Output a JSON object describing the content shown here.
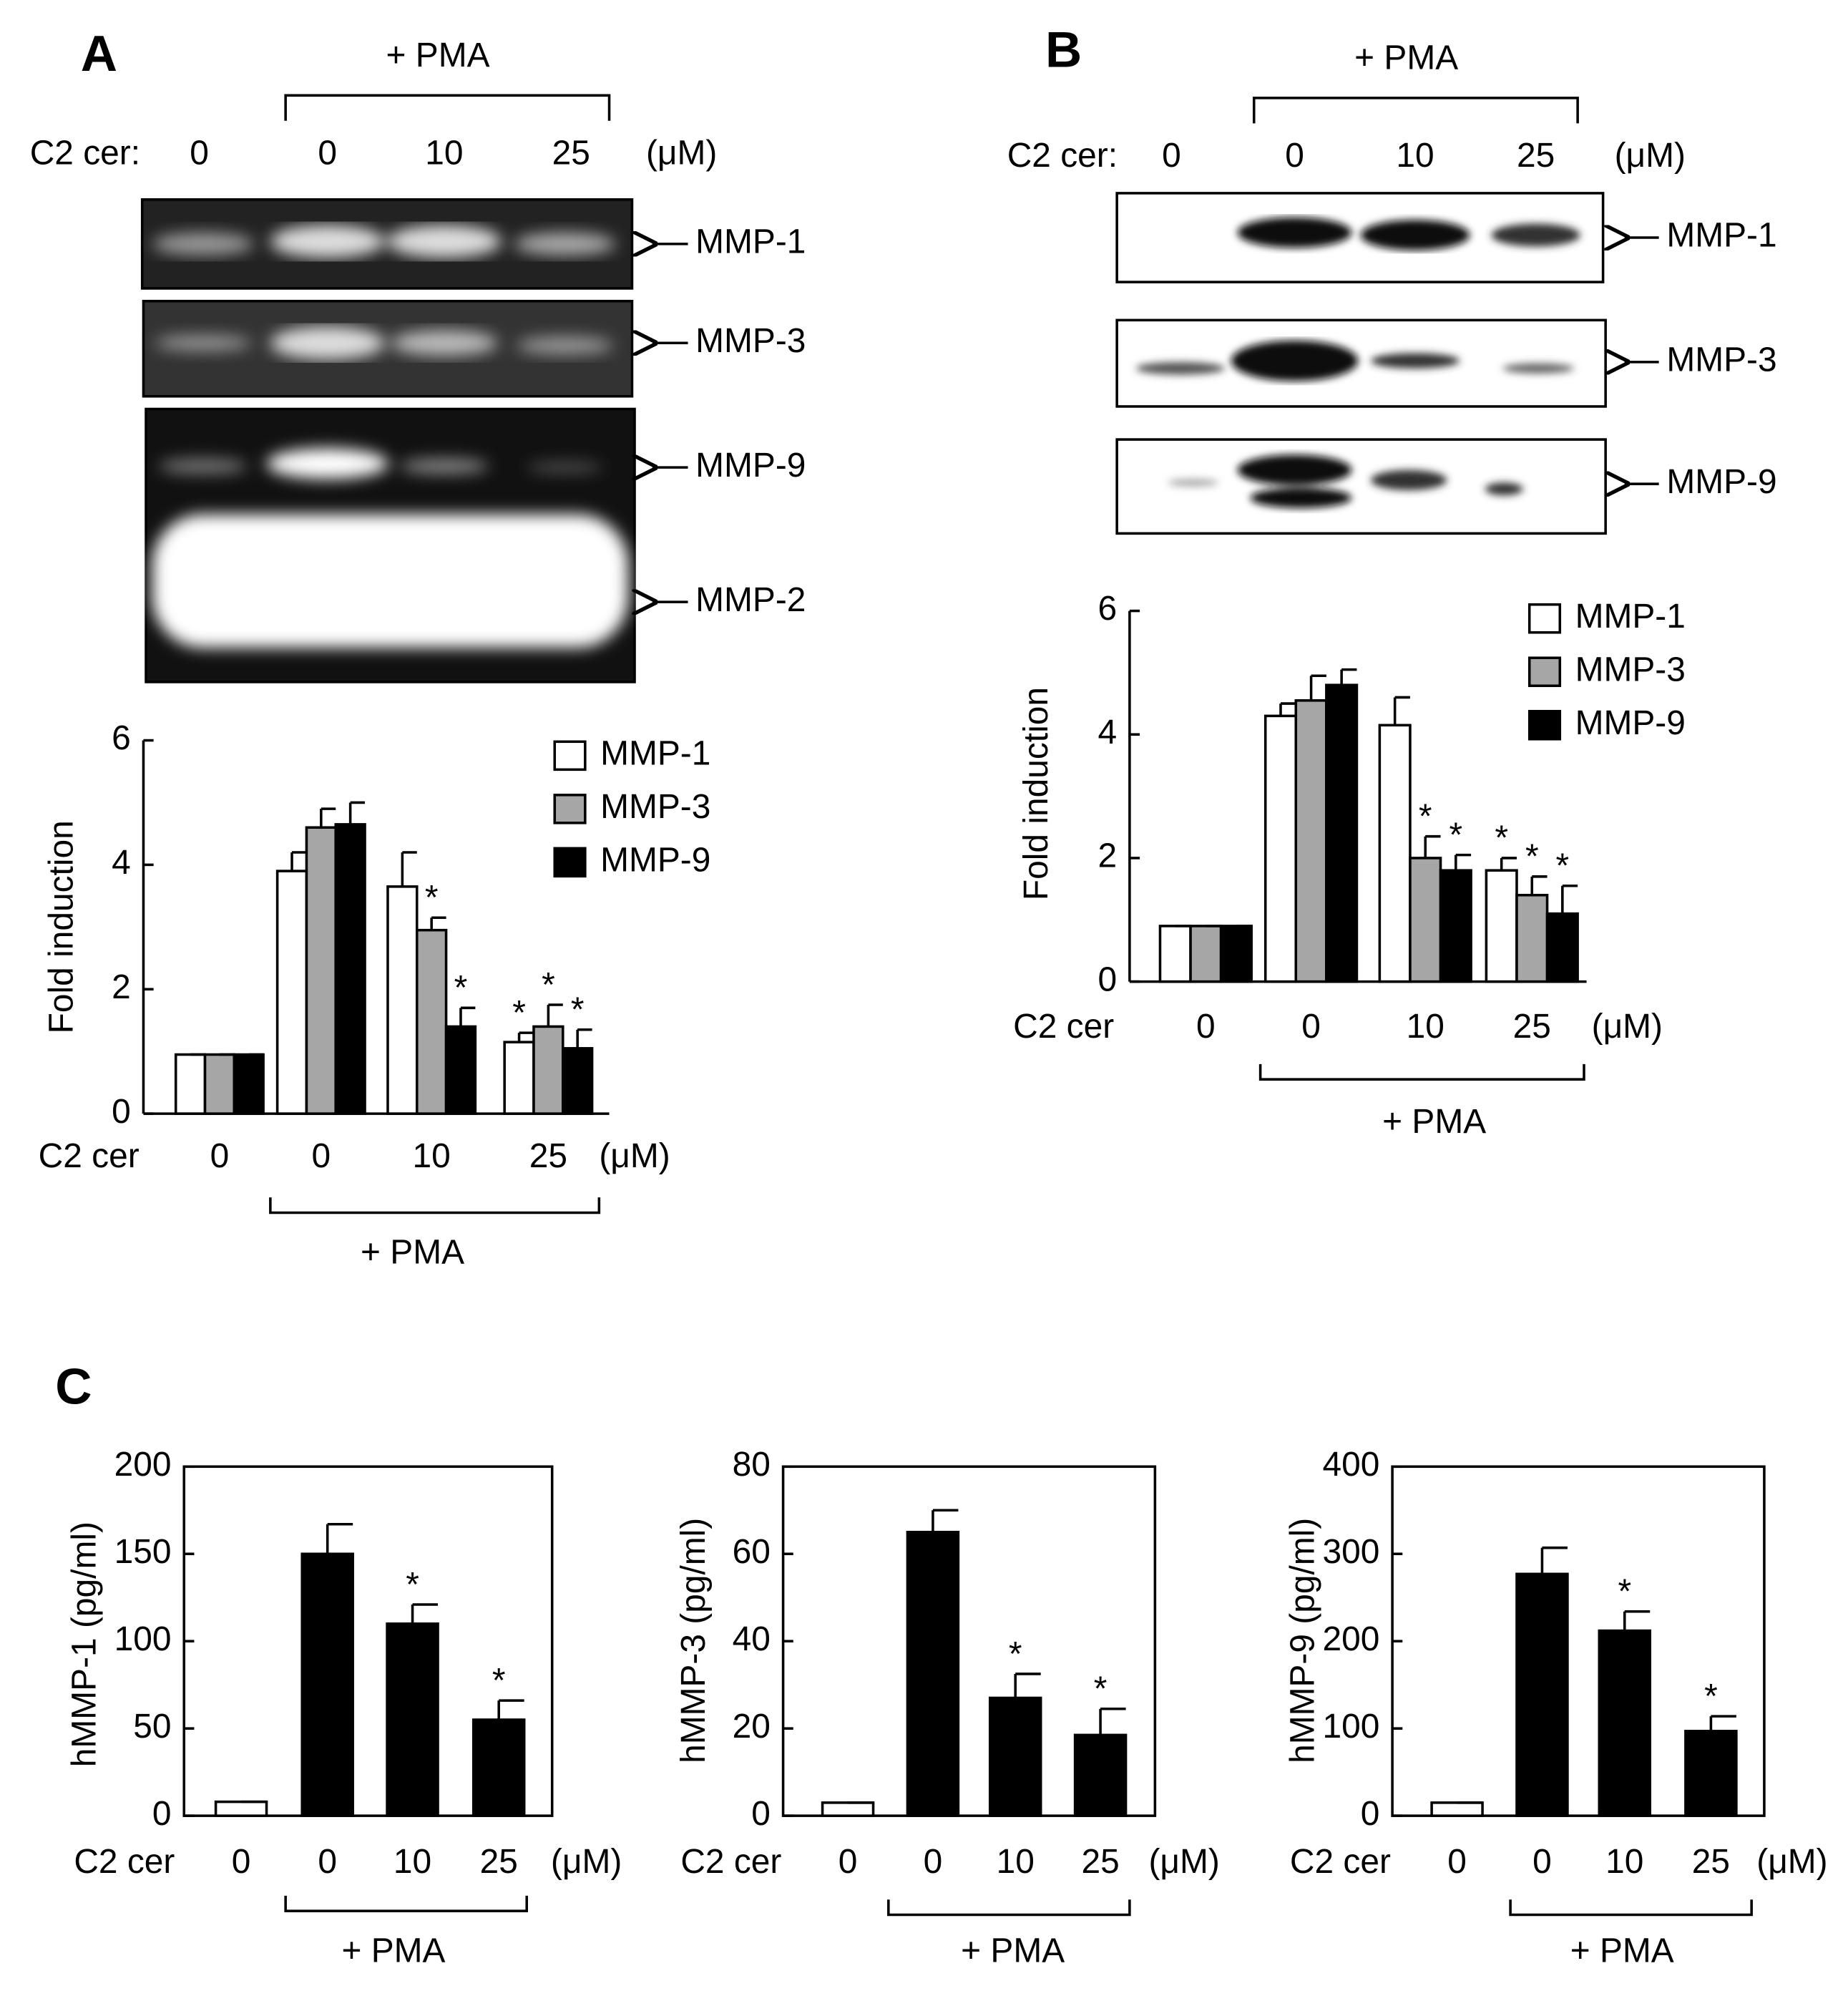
{
  "blots": [
    {
      "letter": "A",
      "treatment": "+ PMA",
      "dose_label": "C2 cer:",
      "doses": [
        "0",
        "0",
        "10",
        "25"
      ],
      "unit": "(μM)",
      "bands": [
        "MMP-1",
        "MMP-3",
        "MMP-9",
        "MMP-2"
      ]
    },
    {
      "letter": "B",
      "treatment": "+ PMA",
      "dose_label": "C2 cer:",
      "doses": [
        "0",
        "0",
        "10",
        "25"
      ],
      "unit": "(μM)",
      "bands": [
        "MMP-1",
        "MMP-3",
        "MMP-9"
      ]
    }
  ],
  "panel_c": "C",
  "chart_data": [
    {
      "type": "bar",
      "ylabel": "Fold induction",
      "xlabel": "C2 cer",
      "unit": "(μM)",
      "bracket": "+ PMA",
      "categories": [
        "0",
        "0",
        "10",
        "25"
      ],
      "ylim": [
        0,
        6
      ],
      "yticks": [
        0,
        2,
        4,
        6
      ],
      "series": [
        {
          "name": "MMP-1",
          "color": "#ffffff",
          "values": [
            0.95,
            3.9,
            3.65,
            1.15
          ],
          "errors": [
            0,
            0.3,
            0.55,
            0.15
          ],
          "significance": [
            null,
            null,
            null,
            "*"
          ]
        },
        {
          "name": "MMP-3",
          "color": "#a6a6a6",
          "values": [
            0.95,
            4.6,
            2.95,
            1.4
          ],
          "errors": [
            0,
            0.3,
            0.2,
            0.35
          ],
          "significance": [
            null,
            null,
            "*",
            "*"
          ]
        },
        {
          "name": "MMP-9",
          "color": "#000000",
          "values": [
            0.95,
            4.65,
            1.4,
            1.05
          ],
          "errors": [
            0,
            0.35,
            0.3,
            0.3
          ],
          "significance": [
            null,
            null,
            "*",
            "*"
          ]
        }
      ]
    },
    {
      "type": "bar",
      "ylabel": "Fold induction",
      "xlabel": "C2 cer",
      "unit": "(μM)",
      "bracket": "+ PMA",
      "categories": [
        "0",
        "0",
        "10",
        "25"
      ],
      "ylim": [
        0,
        6
      ],
      "yticks": [
        0,
        2,
        4,
        6
      ],
      "series": [
        {
          "name": "MMP-1",
          "color": "#ffffff",
          "values": [
            0.9,
            4.3,
            4.15,
            1.8
          ],
          "errors": [
            0,
            0.2,
            0.45,
            0.2
          ],
          "significance": [
            null,
            null,
            null,
            "*"
          ]
        },
        {
          "name": "MMP-3",
          "color": "#a6a6a6",
          "values": [
            0.9,
            4.55,
            2.0,
            1.4
          ],
          "errors": [
            0,
            0.4,
            0.35,
            0.3
          ],
          "significance": [
            null,
            null,
            "*",
            "*"
          ]
        },
        {
          "name": "MMP-9",
          "color": "#000000",
          "values": [
            0.9,
            4.8,
            1.8,
            1.1
          ],
          "errors": [
            0,
            0.25,
            0.25,
            0.45
          ],
          "significance": [
            null,
            null,
            "*",
            "*"
          ]
        }
      ]
    },
    {
      "type": "bar",
      "ylabel": "hMMP-1  (pg/ml)",
      "xlabel": "C2 cer",
      "unit": "(μM)",
      "bracket": "+  PMA",
      "categories": [
        "0",
        "0",
        "10",
        "25"
      ],
      "ylim": [
        0,
        200
      ],
      "yticks": [
        0,
        50,
        100,
        150,
        200
      ],
      "series": [
        {
          "colors": [
            "#ffffff",
            "#000000",
            "#000000",
            "#000000"
          ],
          "values": [
            8,
            150,
            110,
            55
          ],
          "errors": [
            0,
            17,
            11,
            11
          ],
          "significance": [
            null,
            null,
            "*",
            "*"
          ]
        }
      ]
    },
    {
      "type": "bar",
      "ylabel": "hMMP-3  (pg/ml)",
      "xlabel": "C2 cer",
      "unit": "(μM)",
      "bracket": "+  PMA",
      "categories": [
        "0",
        "0",
        "10",
        "25"
      ],
      "ylim": [
        0,
        80
      ],
      "yticks": [
        0,
        20,
        40,
        60,
        80
      ],
      "series": [
        {
          "colors": [
            "#ffffff",
            "#000000",
            "#000000",
            "#000000"
          ],
          "values": [
            3,
            65,
            27,
            18.5
          ],
          "errors": [
            0,
            5,
            5.5,
            6
          ],
          "significance": [
            null,
            null,
            "*",
            "*"
          ]
        }
      ]
    },
    {
      "type": "bar",
      "ylabel": "hMMP-9  (pg/ml)",
      "xlabel": "C2 cer",
      "unit": "(μM)",
      "bracket": "+  PMA",
      "categories": [
        "0",
        "0",
        "10",
        "25"
      ],
      "ylim": [
        0,
        400
      ],
      "yticks": [
        0,
        100,
        200,
        300,
        400
      ],
      "series": [
        {
          "colors": [
            "#ffffff",
            "#000000",
            "#000000",
            "#000000"
          ],
          "values": [
            15,
            277,
            212,
            97
          ],
          "errors": [
            0,
            30,
            22,
            17
          ],
          "significance": [
            null,
            null,
            "*",
            "*"
          ]
        }
      ]
    }
  ]
}
